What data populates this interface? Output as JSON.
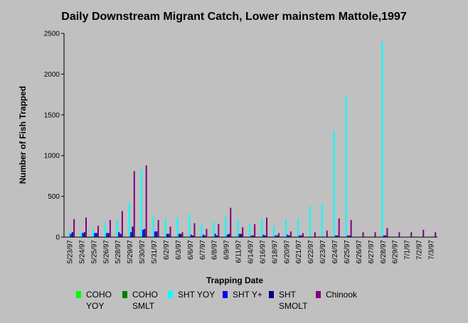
{
  "chart_data": {
    "type": "bar",
    "title": "Daily Downstream Migrant Catch, Lower mainstem Mattole,1997",
    "xlabel": "Trapping Date",
    "ylabel": "Number of Fish Trapped",
    "ylim": [
      0,
      2500
    ],
    "yticks": [
      0,
      500,
      1000,
      1500,
      2000,
      2500
    ],
    "grid": false,
    "legend_position": "bottom",
    "categories": [
      "5/23/97",
      "5/24/97",
      "5/25/97",
      "5/26/97",
      "5/28/97",
      "5/29/97",
      "5/30/97",
      "5/31/97",
      "6/2/97",
      "6/3/97",
      "6/6/97",
      "6/7/97",
      "6/8/97",
      "6/9/97",
      "6/11/97",
      "6/14/97",
      "6/16/97",
      "6/18/97",
      "6/20/97",
      "6/21/97",
      "6/22/97",
      "6/23/97",
      "6/24/97",
      "6/25/97",
      "6/26/97",
      "6/27/97",
      "6/28/97",
      "6/29/97",
      "7/1/97",
      "7/2/97",
      "7/3/97"
    ],
    "series": [
      {
        "name": "COHO YOY",
        "color": "#00ff00",
        "values": [
          0,
          0,
          0,
          0,
          0,
          0,
          0,
          0,
          0,
          0,
          0,
          0,
          0,
          0,
          0,
          0,
          0,
          0,
          0,
          0,
          0,
          0,
          0,
          0,
          0,
          0,
          0,
          0,
          0,
          0,
          0
        ]
      },
      {
        "name": "COHO SMLT",
        "color": "#008000",
        "values": [
          0,
          0,
          0,
          0,
          0,
          0,
          0,
          0,
          0,
          0,
          0,
          0,
          0,
          0,
          0,
          0,
          0,
          0,
          0,
          0,
          0,
          0,
          0,
          0,
          0,
          0,
          0,
          0,
          0,
          0,
          0
        ]
      },
      {
        "name": "SHT YOY",
        "color": "#00ffff",
        "values": [
          70,
          60,
          100,
          180,
          210,
          420,
          830,
          260,
          230,
          240,
          290,
          160,
          190,
          260,
          220,
          170,
          220,
          140,
          210,
          230,
          380,
          400,
          1300,
          1730,
          0,
          0,
          2400,
          0,
          0,
          0,
          0
        ]
      },
      {
        "name": "SHT Y+",
        "color": "#0000ff",
        "values": [
          40,
          50,
          50,
          50,
          60,
          60,
          90,
          70,
          40,
          40,
          30,
          30,
          40,
          30,
          40,
          20,
          30,
          20,
          30,
          20,
          0,
          0,
          20,
          20,
          0,
          0,
          20,
          0,
          0,
          0,
          0
        ]
      },
      {
        "name": "SHT SMOLT",
        "color": "#000080",
        "values": [
          60,
          60,
          50,
          50,
          40,
          130,
          100,
          70,
          40,
          40,
          20,
          20,
          20,
          40,
          40,
          20,
          20,
          20,
          20,
          20,
          0,
          0,
          20,
          20,
          0,
          0,
          20,
          0,
          0,
          0,
          0
        ]
      },
      {
        "name": "Chinook",
        "color": "#800080",
        "values": [
          220,
          240,
          140,
          210,
          320,
          810,
          880,
          210,
          130,
          60,
          170,
          100,
          160,
          360,
          120,
          160,
          240,
          50,
          70,
          50,
          60,
          80,
          230,
          210,
          60,
          60,
          110,
          60,
          60,
          90,
          60
        ]
      }
    ]
  }
}
